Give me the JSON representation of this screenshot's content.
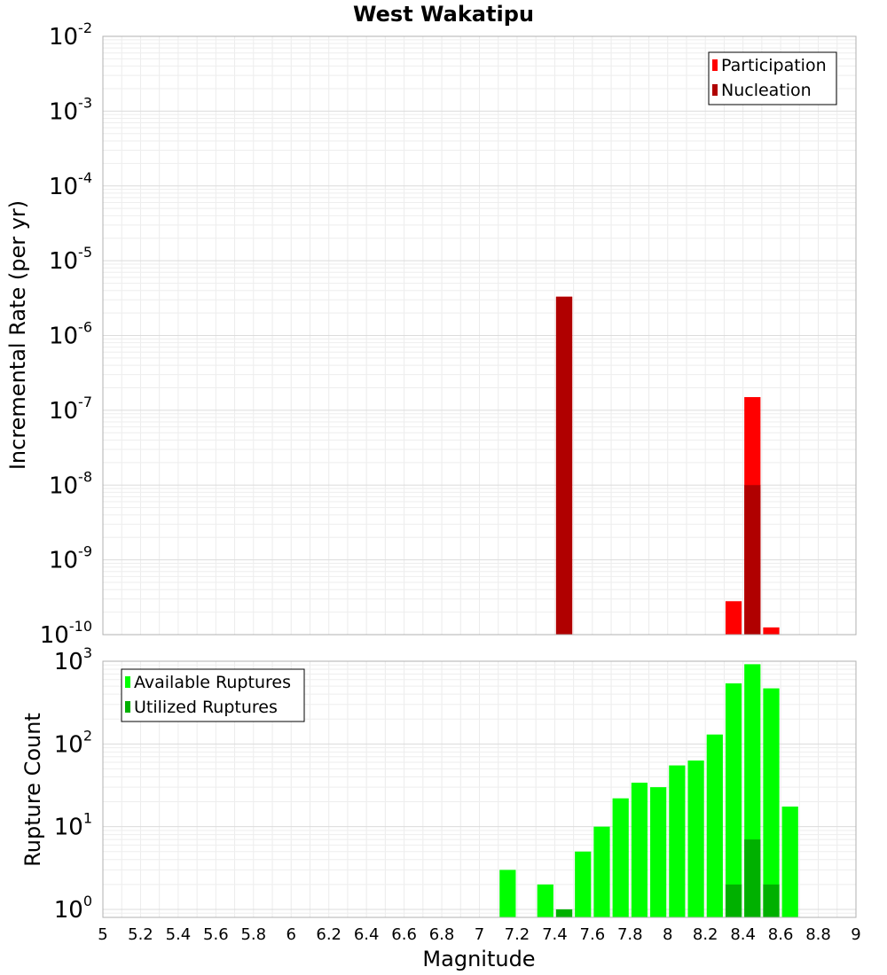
{
  "chart_data": [
    {
      "type": "bar",
      "title": "West Wakatipu",
      "xlabel": "",
      "ylabel": "Incremental Rate (per yr)",
      "xlim": [
        5,
        9
      ],
      "ylim": [
        1e-10,
        0.01
      ],
      "y_scale": "log",
      "bin_width": 0.1,
      "grid": true,
      "legend_position": "top-right",
      "y_ticks": [
        {
          "base": "10",
          "exp": "-2",
          "value": 0.01
        },
        {
          "base": "10",
          "exp": "-3",
          "value": 0.001
        },
        {
          "base": "10",
          "exp": "-4",
          "value": 0.0001
        },
        {
          "base": "10",
          "exp": "-5",
          "value": 1e-05
        },
        {
          "base": "10",
          "exp": "-6",
          "value": 1e-06
        },
        {
          "base": "10",
          "exp": "-7",
          "value": 1e-07
        },
        {
          "base": "10",
          "exp": "-8",
          "value": 1e-08
        },
        {
          "base": "10",
          "exp": "-9",
          "value": 1e-09
        },
        {
          "base": "10",
          "exp": "-10",
          "value": 1e-10
        }
      ],
      "series": [
        {
          "name": "Participation",
          "color": "#ff0000",
          "points": [
            {
              "x": 7.45,
              "y": 3.3e-06
            },
            {
              "x": 8.35,
              "y": 2.8e-10
            },
            {
              "x": 8.45,
              "y": 1.5e-07
            },
            {
              "x": 8.55,
              "y": 1.25e-10
            }
          ]
        },
        {
          "name": "Nucleation",
          "color": "#b00000",
          "points": [
            {
              "x": 7.45,
              "y": 3.3e-06
            },
            {
              "x": 8.45,
              "y": 1e-08
            }
          ]
        }
      ]
    },
    {
      "type": "bar",
      "title": "",
      "xlabel": "Magnitude",
      "ylabel": "Rupture Count",
      "xlim": [
        5,
        9
      ],
      "ylim": [
        0.8,
        1000
      ],
      "y_scale": "log",
      "bin_width": 0.1,
      "grid": true,
      "legend_position": "top-left",
      "y_ticks": [
        {
          "base": "10",
          "exp": "3",
          "value": 1000
        },
        {
          "base": "10",
          "exp": "2",
          "value": 100
        },
        {
          "base": "10",
          "exp": "1",
          "value": 10
        },
        {
          "base": "10",
          "exp": "0",
          "value": 1
        }
      ],
      "x_tick_labels": [
        "5",
        "5.2",
        "5.4",
        "5.6",
        "5.8",
        "6",
        "6.2",
        "6.4",
        "6.6",
        "6.8",
        "7",
        "7.2",
        "7.4",
        "7.6",
        "7.8",
        "8",
        "8.2",
        "8.4",
        "8.6",
        "8.8",
        "9"
      ],
      "series": [
        {
          "name": "Available Ruptures",
          "color": "#00ff00",
          "points": [
            {
              "x": 7.15,
              "y": 3
            },
            {
              "x": 7.35,
              "y": 2
            },
            {
              "x": 7.45,
              "y": 1
            },
            {
              "x": 7.55,
              "y": 5
            },
            {
              "x": 7.65,
              "y": 10
            },
            {
              "x": 7.75,
              "y": 22
            },
            {
              "x": 7.85,
              "y": 34
            },
            {
              "x": 7.95,
              "y": 30
            },
            {
              "x": 8.05,
              "y": 55
            },
            {
              "x": 8.15,
              "y": 63
            },
            {
              "x": 8.25,
              "y": 130
            },
            {
              "x": 8.35,
              "y": 540
            },
            {
              "x": 8.45,
              "y": 920
            },
            {
              "x": 8.55,
              "y": 470
            },
            {
              "x": 8.65,
              "y": 17.5
            }
          ]
        },
        {
          "name": "Utilized Ruptures",
          "color": "#00b000",
          "points": [
            {
              "x": 7.45,
              "y": 1
            },
            {
              "x": 8.35,
              "y": 2
            },
            {
              "x": 8.45,
              "y": 7
            },
            {
              "x": 8.55,
              "y": 2
            }
          ]
        }
      ]
    }
  ]
}
